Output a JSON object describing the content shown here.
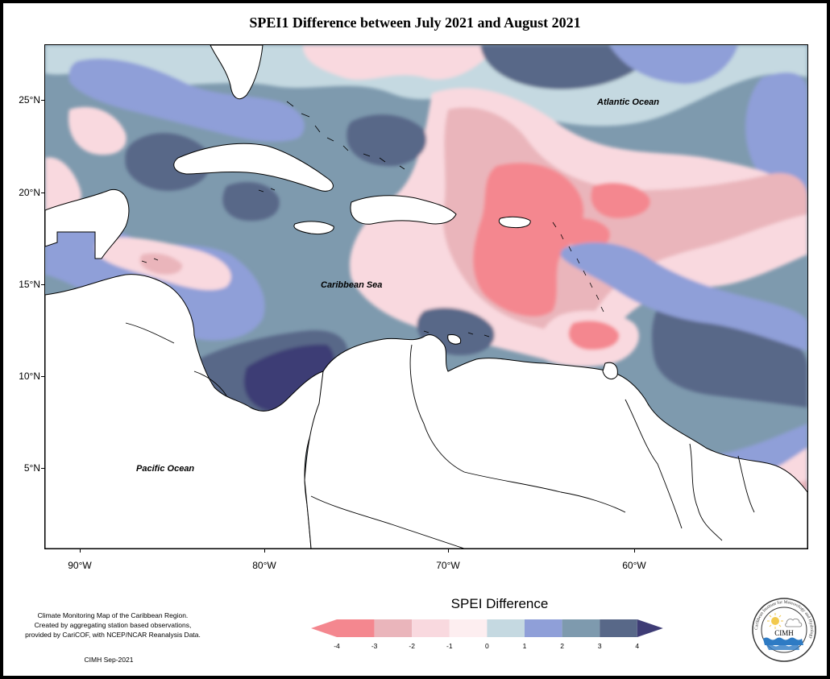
{
  "title": "SPEI1 Difference between July 2021 and August 2021",
  "map": {
    "labels": {
      "atlantic": "Atlantic Ocean",
      "caribbean": "Caribbean Sea",
      "pacific": "Pacific Ocean"
    },
    "lat_ticks": [
      "25°N",
      "20°N",
      "15°N",
      "10°N",
      "5°N"
    ],
    "lon_ticks": [
      "90°W",
      "80°W",
      "70°W",
      "60°W"
    ]
  },
  "legend": {
    "title": "SPEI Difference",
    "labels": [
      "-4",
      "-3",
      "-2",
      "-1",
      "0",
      "1",
      "2",
      "3",
      "4"
    ],
    "colors": [
      "#f4878f",
      "#eab5bb",
      "#f9d9df",
      "#fdeef0",
      "#c5d9e1",
      "#8f9fd8",
      "#7e9aae",
      "#586888",
      "#3e3c75"
    ]
  },
  "credit": {
    "line1": "Climate Monitoring Map of the Caribbean Region.",
    "line2": "Created by aggregating station based observations,",
    "line3": "provided by CariCOF, with NCEP/NCAR Reanalysis Data.",
    "date": "CIMH Sep-2021"
  },
  "logo": {
    "ring_text": "Caribbean Institute for Meteorology and Hydrology",
    "abbr": "CIMH"
  }
}
